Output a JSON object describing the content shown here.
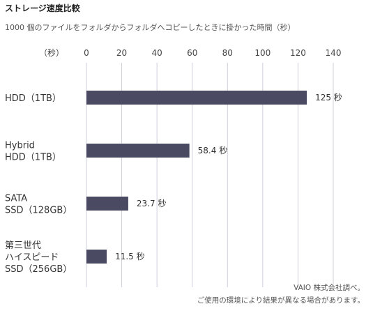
{
  "chart_data": {
    "type": "bar",
    "orientation": "horizontal",
    "title": "ストレージ速度比較",
    "subtitle": "1000 個のファイルをフォルダからフォルダへコピーしたときに掛かった時間（秒）",
    "unit_label": "（秒）",
    "value_suffix": " 秒",
    "xlim": [
      0,
      140
    ],
    "ticks": [
      0,
      20,
      40,
      60,
      80,
      100,
      120,
      140
    ],
    "grid": true,
    "bar_color": "#4a4a63",
    "categories": [
      [
        "HDD（1TB）"
      ],
      [
        "Hybrid",
        "HDD（1TB）"
      ],
      [
        "SATA",
        "SSD（128GB）"
      ],
      [
        "第三世代",
        "ハイスピード",
        "SSD（256GB）"
      ]
    ],
    "values": [
      125,
      58.4,
      23.7,
      11.5
    ],
    "value_labels": [
      "125",
      "58.4",
      "23.7",
      "11.5"
    ],
    "notes": [
      "VAIO 株式会社調べ。",
      "ご使用の環境により結果が異なる場合があります。"
    ]
  }
}
